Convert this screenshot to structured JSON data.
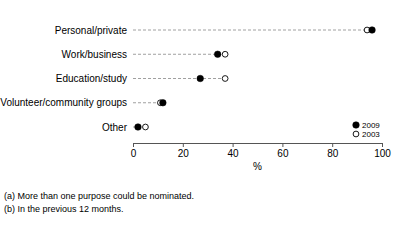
{
  "chart_data": {
    "type": "dot",
    "orientation": "horizontal",
    "categories": [
      "Personal/private",
      "Work/business",
      "Education/study",
      "Volunteer/community groups",
      "Other"
    ],
    "series": [
      {
        "name": "2009",
        "color": "#000000",
        "marker": "circle",
        "values": [
          96,
          34,
          27,
          12,
          2
        ]
      },
      {
        "name": "2003",
        "color": "#000000",
        "marker": "open-circle",
        "values": [
          94,
          37,
          37,
          11,
          5
        ]
      }
    ],
    "x_label": "%",
    "xlim": [
      0,
      100
    ],
    "xticks": [
      0,
      20,
      40,
      60,
      80,
      100
    ],
    "legend": "lower right",
    "line_style": "dashed",
    "annotations": [
      "(a) More than one purpose could be nominated.",
      "(b) In the previous 12 months."
    ]
  }
}
